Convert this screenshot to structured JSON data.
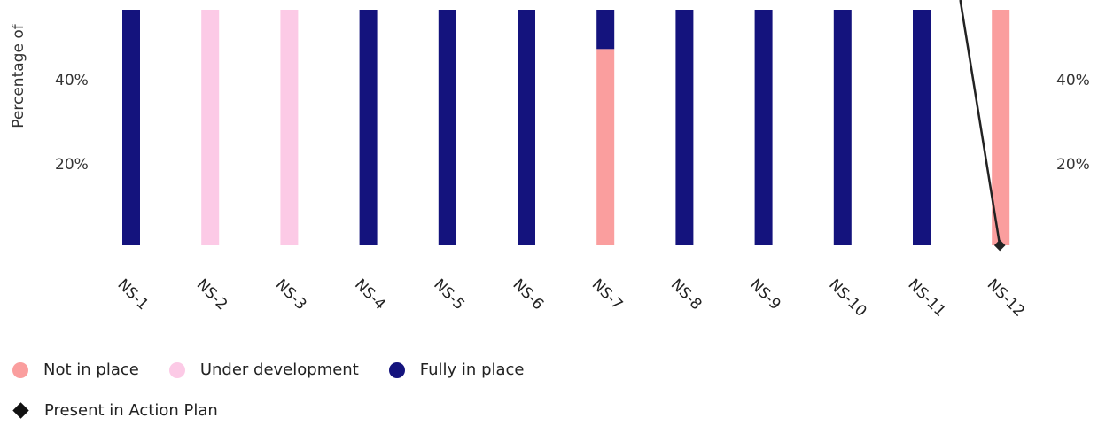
{
  "chart_data": {
    "type": "bar",
    "stacked": true,
    "ylabel": "Percentage of",
    "y_ticks_left": [
      "20%",
      "40%"
    ],
    "y_ticks_right": [
      "20%",
      "40%"
    ],
    "categories": [
      "NS-1",
      "NS-2",
      "NS-3",
      "NS-4",
      "NS-5",
      "NS-6",
      "NS-7",
      "NS-8",
      "NS-9",
      "NS-10",
      "NS-11",
      "NS-12"
    ],
    "ylim": [
      0,
      60
    ],
    "series": [
      {
        "name": "Not in place",
        "color": "#fa9e9e",
        "values": [
          0,
          0,
          0,
          0,
          0,
          0,
          50,
          0,
          0,
          0,
          0,
          60
        ]
      },
      {
        "name": "Under development",
        "color": "#fccae6",
        "values": [
          0,
          60,
          60,
          0,
          0,
          0,
          0,
          0,
          0,
          0,
          0,
          0
        ]
      },
      {
        "name": "Fully in place",
        "color": "#14137d",
        "values": [
          60,
          0,
          0,
          60,
          60,
          60,
          10,
          60,
          60,
          60,
          60,
          0
        ]
      }
    ],
    "line_series": {
      "name": "Present in Action Plan",
      "color": "#222222",
      "points": [
        {
          "category": "NS-11.5",
          "value": 60
        },
        {
          "category": "NS-12",
          "value": 0
        }
      ]
    }
  },
  "legend": {
    "not_in_place": "Not in place",
    "under_development": "Under development",
    "fully_in_place": "Fully in place",
    "present_in_action_plan": "Present in Action Plan"
  }
}
